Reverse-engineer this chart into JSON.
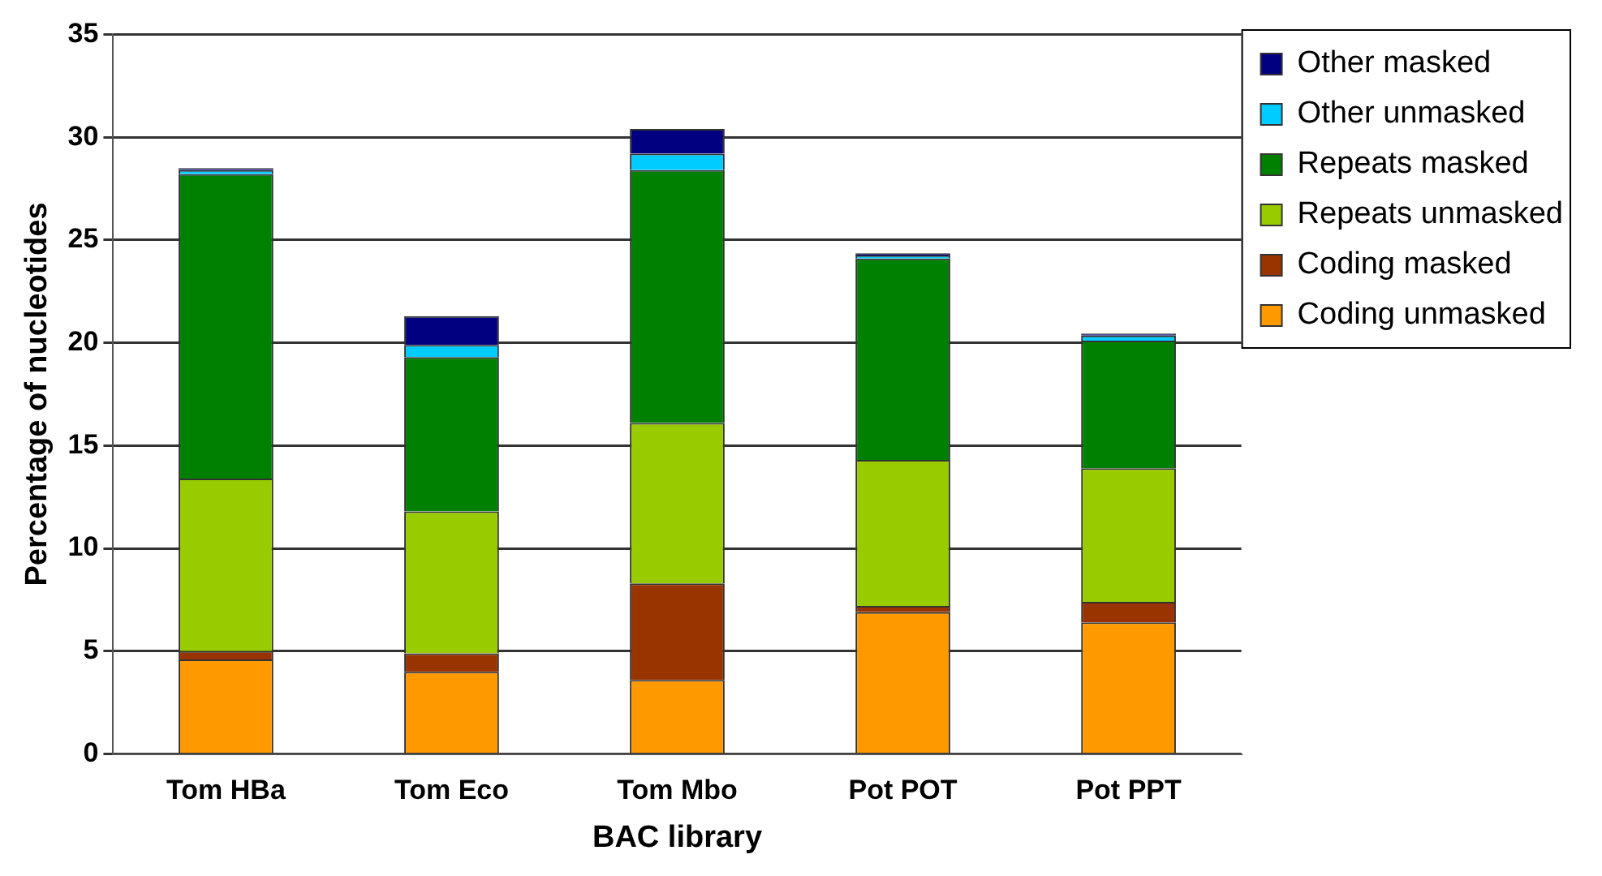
{
  "chart_data": {
    "type": "bar",
    "xlabel": "BAC library",
    "ylabel": "Percentage of nucleotides",
    "categories": [
      "Tom HBa",
      "Tom Eco",
      "Tom Mbo",
      "Pot POT",
      "Pot PPT"
    ],
    "stacked": true,
    "ylim": [
      0,
      35
    ],
    "yticks": [
      0,
      5,
      10,
      15,
      20,
      25,
      30,
      35
    ],
    "grid": "y",
    "legend": "top right",
    "series": [
      {
        "name": "Coding unmasked",
        "color": "#ff9900",
        "values": [
          4.6,
          4.0,
          3.6,
          6.9,
          6.4
        ]
      },
      {
        "name": "Coding masked",
        "color": "#993300",
        "values": [
          0.4,
          0.9,
          4.7,
          0.3,
          1.0
        ]
      },
      {
        "name": "Repeats unmasked",
        "color": "#99cc00",
        "values": [
          8.4,
          6.9,
          7.8,
          7.1,
          6.5
        ]
      },
      {
        "name": "Repeats masked",
        "color": "#008000",
        "values": [
          14.8,
          7.5,
          12.3,
          9.8,
          6.2
        ]
      },
      {
        "name": "Other unmasked",
        "color": "#00ccff",
        "values": [
          0.2,
          0.6,
          0.8,
          0.15,
          0.25
        ]
      },
      {
        "name": "Other masked",
        "color": "#000080",
        "values": [
          0.1,
          1.4,
          1.2,
          0.1,
          0.1
        ]
      }
    ]
  }
}
